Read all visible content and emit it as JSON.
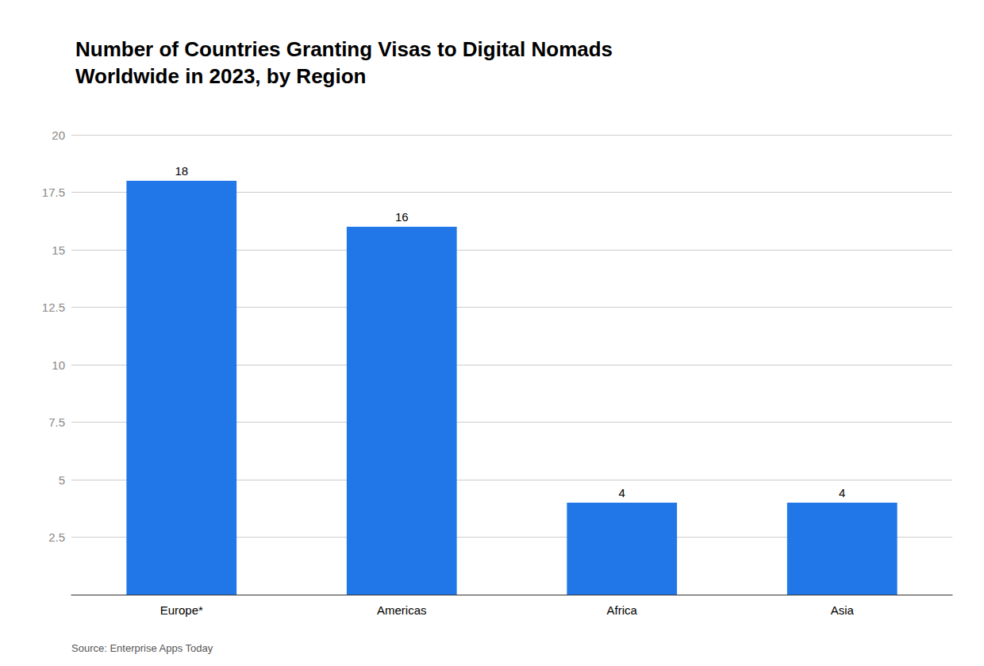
{
  "chart_data": {
    "type": "bar",
    "title": "Number of Countries Granting Visas to Digital Nomads\nWorldwide in 2023, by Region",
    "categories": [
      "Europe*",
      "Americas",
      "Africa",
      "Asia"
    ],
    "values": [
      18,
      16,
      4,
      4
    ],
    "color": "#2176e8",
    "ylim": [
      0,
      20
    ],
    "yticks": [
      {
        "value": 0,
        "label": ""
      },
      2.5,
      5,
      7.5,
      10,
      12.5,
      15,
      17.5,
      20
    ],
    "grid": true,
    "data_labels": true,
    "annotations": [
      "Source: Enterprise Apps Today"
    ]
  }
}
